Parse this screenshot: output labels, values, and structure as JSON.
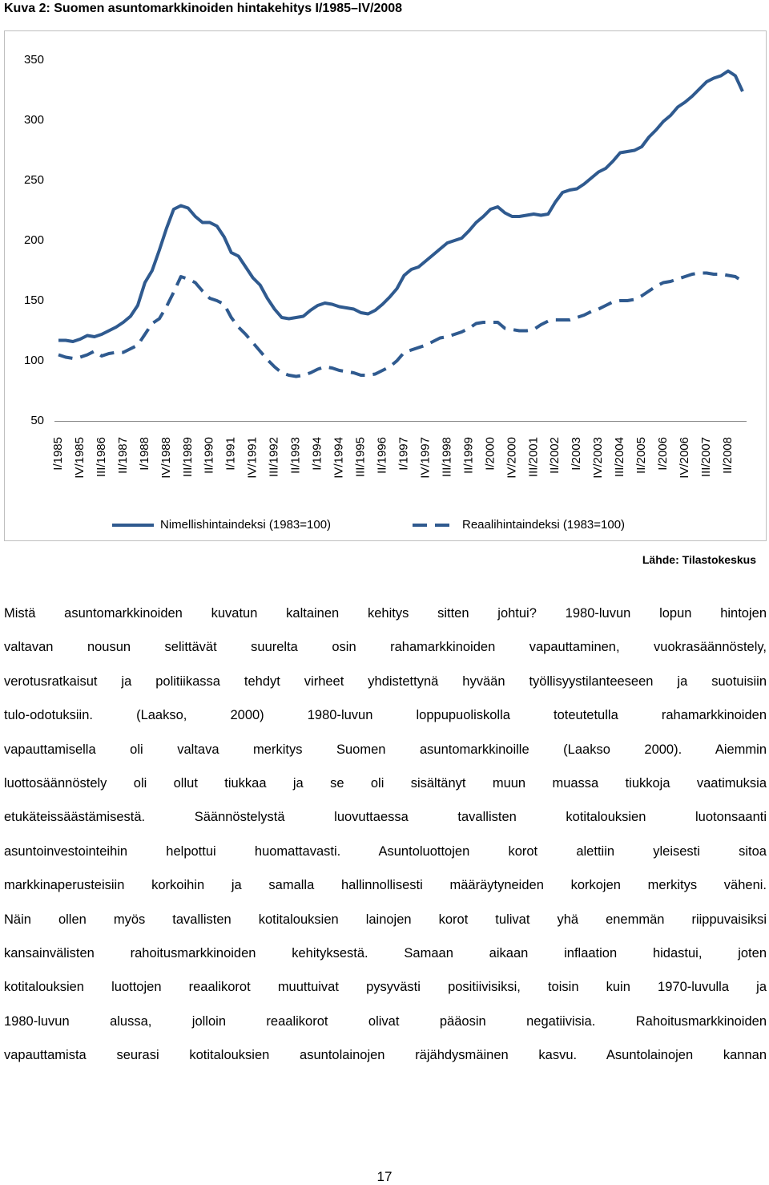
{
  "title": "Kuva 2: Suomen asuntomarkkinoiden hintakehitys I/1985–IV/2008",
  "chart_data": {
    "type": "line",
    "categories": [
      "I/1985",
      null,
      null,
      "IV/1985",
      null,
      null,
      "III/1986",
      null,
      null,
      "II/1987",
      null,
      null,
      "I/1988",
      null,
      null,
      "IV/1988",
      null,
      null,
      "III/1989",
      null,
      null,
      "II/1990",
      null,
      null,
      "I/1991",
      null,
      null,
      "IV/1991",
      null,
      null,
      "III/1992",
      null,
      null,
      "II/1993",
      null,
      null,
      "I/1994",
      null,
      null,
      "IV/1994",
      null,
      null,
      "III/1995",
      null,
      null,
      "II/1996",
      null,
      null,
      "I/1997",
      null,
      null,
      "IV/1997",
      null,
      null,
      "III/1998",
      null,
      null,
      "II/1999",
      null,
      null,
      "I/2000",
      null,
      null,
      "IV/2000",
      null,
      null,
      "III/2001",
      null,
      null,
      "II/2002",
      null,
      null,
      "I/2003",
      null,
      null,
      "IV/2003",
      null,
      null,
      "III/2004",
      null,
      null,
      "II/2005",
      null,
      null,
      "I/2006",
      null,
      null,
      "IV/2006",
      null,
      null,
      "III/2007",
      null,
      null,
      "II/2008",
      null,
      null
    ],
    "series": [
      {
        "name": "Nimellishintaindeksi (1983=100)",
        "color": "#2f5a8f",
        "dash": false,
        "values": [
          117,
          117,
          116,
          118,
          121,
          120,
          122,
          125,
          128,
          132,
          137,
          146,
          165,
          175,
          192,
          210,
          226,
          229,
          227,
          220,
          215,
          215,
          212,
          203,
          190,
          187,
          178,
          169,
          163,
          152,
          143,
          136,
          135,
          136,
          137,
          142,
          146,
          148,
          147,
          145,
          144,
          143,
          140,
          139,
          142,
          147,
          153,
          160,
          171,
          176,
          178,
          183,
          188,
          193,
          198,
          200,
          202,
          208,
          215,
          220,
          226,
          228,
          223,
          220,
          220,
          221,
          222,
          221,
          222,
          232,
          240,
          242,
          243,
          247,
          252,
          257,
          260,
          266,
          273,
          274,
          275,
          278,
          286,
          292,
          299,
          304,
          311,
          315,
          320,
          326,
          332,
          335,
          337,
          341,
          337,
          324
        ]
      },
      {
        "name": "Reaalihintaindeksi (1983=100)",
        "color": "#2f5a8f",
        "dash": true,
        "values": [
          105,
          103,
          102,
          103,
          105,
          108,
          104,
          106,
          107,
          107,
          110,
          113,
          122,
          131,
          135,
          145,
          157,
          170,
          168,
          165,
          158,
          152,
          150,
          147,
          136,
          128,
          122,
          115,
          108,
          101,
          95,
          90,
          88,
          87,
          88,
          90,
          93,
          95,
          94,
          92,
          91,
          90,
          88,
          88,
          89,
          92,
          95,
          100,
          107,
          109,
          111,
          113,
          116,
          119,
          120,
          122,
          124,
          127,
          131,
          132,
          132,
          132,
          127,
          126,
          125,
          125,
          126,
          130,
          133,
          134,
          134,
          134,
          136,
          138,
          141,
          143,
          146,
          149,
          150,
          150,
          151,
          154,
          158,
          162,
          165,
          166,
          168,
          170,
          172,
          173,
          173,
          172,
          172,
          171,
          170,
          166
        ]
      }
    ],
    "ylim": [
      50,
      350
    ],
    "yticks": [
      50,
      100,
      150,
      200,
      250,
      300,
      350
    ],
    "grid": false,
    "legend": "bottom"
  },
  "source": "Lähde: Tilastokeskus",
  "paragraph_lines": [
    "Mistä asuntomarkkinoiden kuvatun kaltainen kehitys sitten johtui? 1980-luvun lopun hintojen",
    "valtavan nousun selittävät suurelta osin rahamarkkinoiden vapauttaminen, vuokrasäännöstely,",
    "verotusratkaisut ja politiikassa tehdyt virheet yhdistettynä hyvään työllisyystilanteeseen ja suotuisiin",
    "tulo-odotuksiin. (Laakso, 2000) 1980-luvun loppupuoliskolla toteutetulla rahamarkkinoiden",
    "vapauttamisella oli valtava merkitys Suomen asuntomarkkinoille (Laakso 2000). Aiemmin",
    "luottosäännöstely oli ollut tiukkaa ja se oli sisältänyt muun muassa tiukkoja vaatimuksia",
    "etukäteissäästämisestä. Säännöstelystä luovuttaessa tavallisten kotitalouksien luotonsaanti",
    "asuntoinvestointeihin helpottui huomattavasti. Asuntoluottojen korot alettiin yleisesti sitoa",
    "markkinaperusteisiin korkoihin ja samalla hallinnollisesti määräytyneiden korkojen merkitys väheni.",
    "Näin ollen myös tavallisten kotitalouksien lainojen korot tulivat yhä enemmän riippuvaisiksi",
    "kansainvälisten rahoitusmarkkinoiden kehityksestä. Samaan aikaan inflaation hidastui, joten",
    "kotitalouksien luottojen reaalikorot muuttuivat pysyvästi positiivisiksi, toisin kuin 1970-luvulla ja",
    "1980-luvun alussa, jolloin reaalikorot olivat pääosin negatiivisia. Rahoitusmarkkinoiden",
    "vapauttamista seurasi kotitalouksien asuntolainojen räjähdysmäinen kasvu. Asuntolainojen kannan"
  ],
  "page_number": "17"
}
